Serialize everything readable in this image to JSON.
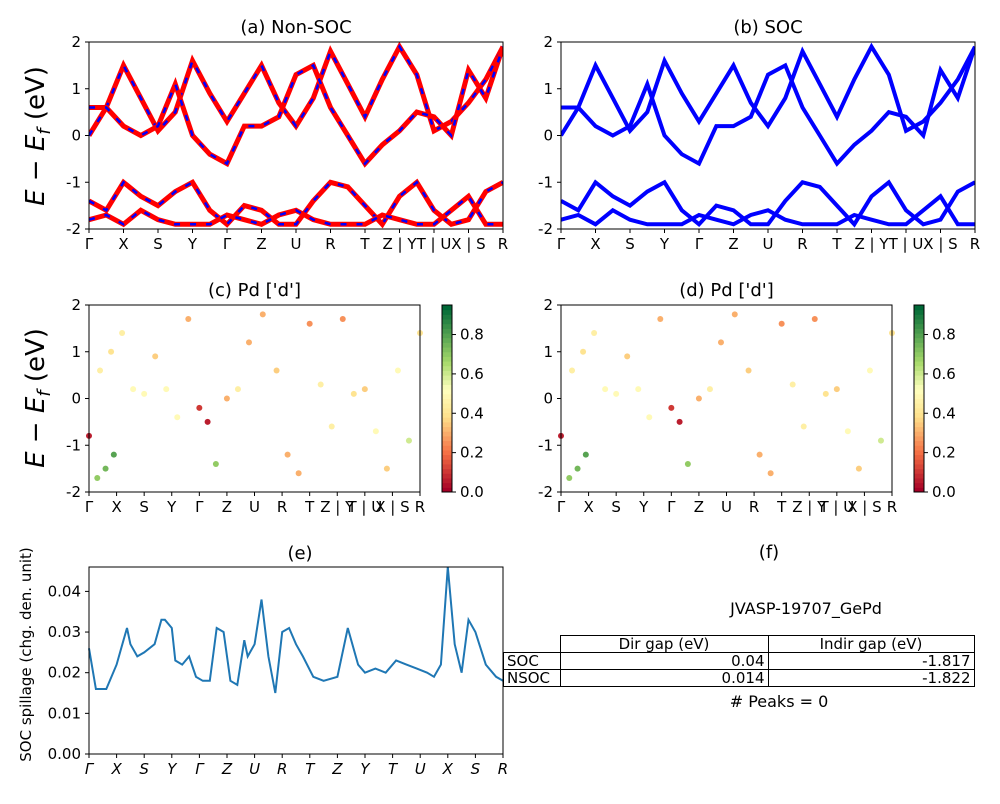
{
  "band_ticks": [
    "Γ",
    "X",
    "S",
    "Y",
    "Γ",
    "Z",
    "U",
    "R",
    "T",
    "Z | Y",
    "T | U",
    "X | S",
    "R"
  ],
  "spillage_ticks": [
    "Γ",
    "X",
    "S",
    "Y",
    "Γ",
    "Z",
    "U",
    "R",
    "T",
    "Z",
    "Y",
    "T",
    "U",
    "X",
    "S",
    "R"
  ],
  "ylabel_energy": "E − E",
  "ylabel_energy_sub": "f",
  "ylabel_energy_unit": "(eV)",
  "colorbar_ticks": [
    "0.0",
    "0.2",
    "0.4",
    "0.6",
    "0.8"
  ],
  "colors": {
    "nonsoc": "#ff0000",
    "nonsoc_dash": "#0000ff",
    "soc": "#0000ff",
    "spillage": "#1f77b4"
  },
  "chart_data": [
    {
      "type": "line",
      "title": "(a) Non-SOC",
      "ylabel": "E − E_f (eV)",
      "ylim": [
        -2,
        2
      ],
      "yticks": [
        -2,
        -1,
        0,
        1,
        2
      ],
      "x": [
        0,
        0.5,
        1,
        1.5,
        2,
        2.5,
        3,
        3.5,
        4,
        4.5,
        5,
        5.5,
        6,
        6.5,
        7,
        7.5,
        8,
        8.5,
        9,
        9.5,
        10,
        10.5,
        11,
        11.5,
        12
      ],
      "series": [
        {
          "values": [
            0.0,
            0.6,
            1.5,
            0.8,
            0.1,
            0.5,
            1.6,
            0.9,
            0.3,
            0.9,
            1.5,
            0.7,
            0.2,
            0.8,
            1.8,
            1.1,
            0.4,
            1.2,
            1.9,
            1.3,
            0.1,
            0.3,
            0.7,
            1.2,
            1.9
          ]
        },
        {
          "values": [
            0.6,
            0.6,
            0.2,
            0.0,
            0.2,
            1.1,
            0.0,
            -0.4,
            -0.6,
            0.2,
            0.2,
            0.4,
            1.3,
            1.5,
            0.6,
            0.0,
            -0.6,
            -0.2,
            0.1,
            0.5,
            0.4,
            0.0,
            1.4,
            0.8,
            1.9
          ]
        },
        {
          "values": [
            -1.4,
            -1.6,
            -1.0,
            -1.3,
            -1.5,
            -1.2,
            -1.0,
            -1.6,
            -1.9,
            -1.5,
            -1.6,
            -1.9,
            -1.9,
            -1.4,
            -1.0,
            -1.1,
            -1.5,
            -1.9,
            -1.3,
            -1.0,
            -1.6,
            -1.9,
            -1.8,
            -1.2,
            -1.0
          ]
        },
        {
          "values": [
            -1.8,
            -1.7,
            -1.9,
            -1.6,
            -1.8,
            -1.9,
            -1.9,
            -1.9,
            -1.7,
            -1.8,
            -1.9,
            -1.7,
            -1.6,
            -1.8,
            -1.9,
            -1.9,
            -1.9,
            -1.7,
            -1.8,
            -1.9,
            -1.9,
            -1.6,
            -1.3,
            -1.9,
            -1.9
          ]
        }
      ]
    },
    {
      "type": "line",
      "title": "(b) SOC",
      "ylim": [
        -2,
        2
      ],
      "yticks": [
        -2,
        -1,
        0,
        1,
        2
      ],
      "x": [
        0,
        0.5,
        1,
        1.5,
        2,
        2.5,
        3,
        3.5,
        4,
        4.5,
        5,
        5.5,
        6,
        6.5,
        7,
        7.5,
        8,
        8.5,
        9,
        9.5,
        10,
        10.5,
        11,
        11.5,
        12
      ],
      "series": [
        {
          "values": [
            0.0,
            0.6,
            1.5,
            0.8,
            0.1,
            0.5,
            1.6,
            0.9,
            0.3,
            0.9,
            1.5,
            0.7,
            0.2,
            0.8,
            1.8,
            1.1,
            0.4,
            1.2,
            1.9,
            1.3,
            0.1,
            0.3,
            0.7,
            1.2,
            1.9
          ]
        },
        {
          "values": [
            0.6,
            0.6,
            0.2,
            0.0,
            0.2,
            1.1,
            0.0,
            -0.4,
            -0.6,
            0.2,
            0.2,
            0.4,
            1.3,
            1.5,
            0.6,
            0.0,
            -0.6,
            -0.2,
            0.1,
            0.5,
            0.4,
            0.0,
            1.4,
            0.8,
            1.9
          ]
        },
        {
          "values": [
            -1.4,
            -1.6,
            -1.0,
            -1.3,
            -1.5,
            -1.2,
            -1.0,
            -1.6,
            -1.9,
            -1.5,
            -1.6,
            -1.9,
            -1.9,
            -1.4,
            -1.0,
            -1.1,
            -1.5,
            -1.9,
            -1.3,
            -1.0,
            -1.6,
            -1.9,
            -1.8,
            -1.2,
            -1.0
          ]
        },
        {
          "values": [
            -1.8,
            -1.7,
            -1.9,
            -1.6,
            -1.8,
            -1.9,
            -1.9,
            -1.9,
            -1.7,
            -1.8,
            -1.9,
            -1.7,
            -1.6,
            -1.8,
            -1.9,
            -1.9,
            -1.9,
            -1.7,
            -1.8,
            -1.9,
            -1.9,
            -1.6,
            -1.3,
            -1.9,
            -1.9
          ]
        }
      ]
    },
    {
      "type": "scatter",
      "title": "(c)  Pd ['d']",
      "ylim": [
        -2,
        2
      ],
      "yticks": [
        -2,
        -1,
        0,
        1,
        2
      ],
      "colorbar_range": [
        0.0,
        0.95
      ],
      "points": [
        {
          "x": 0.0,
          "y": -0.8,
          "c": 0.05
        },
        {
          "x": 0.3,
          "y": -1.7,
          "c": 0.7
        },
        {
          "x": 0.6,
          "y": -1.5,
          "c": 0.75
        },
        {
          "x": 0.9,
          "y": -1.2,
          "c": 0.8
        },
        {
          "x": 0.4,
          "y": 0.6,
          "c": 0.45
        },
        {
          "x": 0.8,
          "y": 1.0,
          "c": 0.4
        },
        {
          "x": 1.2,
          "y": 1.4,
          "c": 0.45
        },
        {
          "x": 1.6,
          "y": 0.2,
          "c": 0.5
        },
        {
          "x": 2.0,
          "y": 0.1,
          "c": 0.5
        },
        {
          "x": 2.4,
          "y": 0.9,
          "c": 0.35
        },
        {
          "x": 2.8,
          "y": 0.2,
          "c": 0.5
        },
        {
          "x": 3.2,
          "y": -0.4,
          "c": 0.5
        },
        {
          "x": 3.6,
          "y": 1.7,
          "c": 0.3
        },
        {
          "x": 4.0,
          "y": -0.2,
          "c": 0.1
        },
        {
          "x": 4.3,
          "y": -0.5,
          "c": 0.05
        },
        {
          "x": 4.6,
          "y": -1.4,
          "c": 0.7
        },
        {
          "x": 5.0,
          "y": 0.0,
          "c": 0.3
        },
        {
          "x": 5.4,
          "y": 0.2,
          "c": 0.45
        },
        {
          "x": 5.8,
          "y": 1.2,
          "c": 0.3
        },
        {
          "x": 6.3,
          "y": 1.8,
          "c": 0.3
        },
        {
          "x": 6.8,
          "y": 0.6,
          "c": 0.35
        },
        {
          "x": 7.2,
          "y": -1.2,
          "c": 0.3
        },
        {
          "x": 7.6,
          "y": -1.6,
          "c": 0.3
        },
        {
          "x": 8.0,
          "y": 1.6,
          "c": 0.25
        },
        {
          "x": 8.4,
          "y": 0.3,
          "c": 0.45
        },
        {
          "x": 8.8,
          "y": -0.6,
          "c": 0.45
        },
        {
          "x": 9.2,
          "y": 1.7,
          "c": 0.25
        },
        {
          "x": 9.6,
          "y": 0.1,
          "c": 0.4
        },
        {
          "x": 10.0,
          "y": 0.2,
          "c": 0.35
        },
        {
          "x": 10.4,
          "y": -0.7,
          "c": 0.5
        },
        {
          "x": 10.8,
          "y": -1.5,
          "c": 0.35
        },
        {
          "x": 11.2,
          "y": 0.6,
          "c": 0.5
        },
        {
          "x": 11.6,
          "y": -0.9,
          "c": 0.6
        },
        {
          "x": 12.0,
          "y": 1.4,
          "c": 0.4
        }
      ]
    },
    {
      "type": "scatter",
      "title": "(d) Pd ['d']",
      "ylim": [
        -2,
        2
      ],
      "yticks": [
        -2,
        -1,
        0,
        1,
        2
      ],
      "colorbar_range": [
        0.0,
        0.95
      ],
      "points": [
        {
          "x": 0.0,
          "y": -0.8,
          "c": 0.05
        },
        {
          "x": 0.3,
          "y": -1.7,
          "c": 0.7
        },
        {
          "x": 0.6,
          "y": -1.5,
          "c": 0.75
        },
        {
          "x": 0.9,
          "y": -1.2,
          "c": 0.8
        },
        {
          "x": 0.4,
          "y": 0.6,
          "c": 0.45
        },
        {
          "x": 0.8,
          "y": 1.0,
          "c": 0.4
        },
        {
          "x": 1.2,
          "y": 1.4,
          "c": 0.45
        },
        {
          "x": 1.6,
          "y": 0.2,
          "c": 0.5
        },
        {
          "x": 2.0,
          "y": 0.1,
          "c": 0.5
        },
        {
          "x": 2.4,
          "y": 0.9,
          "c": 0.35
        },
        {
          "x": 2.8,
          "y": 0.2,
          "c": 0.5
        },
        {
          "x": 3.2,
          "y": -0.4,
          "c": 0.5
        },
        {
          "x": 3.6,
          "y": 1.7,
          "c": 0.3
        },
        {
          "x": 4.0,
          "y": -0.2,
          "c": 0.1
        },
        {
          "x": 4.3,
          "y": -0.5,
          "c": 0.05
        },
        {
          "x": 4.6,
          "y": -1.4,
          "c": 0.7
        },
        {
          "x": 5.0,
          "y": 0.0,
          "c": 0.3
        },
        {
          "x": 5.4,
          "y": 0.2,
          "c": 0.45
        },
        {
          "x": 5.8,
          "y": 1.2,
          "c": 0.3
        },
        {
          "x": 6.3,
          "y": 1.8,
          "c": 0.3
        },
        {
          "x": 6.8,
          "y": 0.6,
          "c": 0.35
        },
        {
          "x": 7.2,
          "y": -1.2,
          "c": 0.3
        },
        {
          "x": 7.6,
          "y": -1.6,
          "c": 0.3
        },
        {
          "x": 8.0,
          "y": 1.6,
          "c": 0.25
        },
        {
          "x": 8.4,
          "y": 0.3,
          "c": 0.45
        },
        {
          "x": 8.8,
          "y": -0.6,
          "c": 0.45
        },
        {
          "x": 9.2,
          "y": 1.7,
          "c": 0.25
        },
        {
          "x": 9.6,
          "y": 0.1,
          "c": 0.4
        },
        {
          "x": 10.0,
          "y": 0.2,
          "c": 0.35
        },
        {
          "x": 10.4,
          "y": -0.7,
          "c": 0.5
        },
        {
          "x": 10.8,
          "y": -1.5,
          "c": 0.35
        },
        {
          "x": 11.2,
          "y": 0.6,
          "c": 0.5
        },
        {
          "x": 11.6,
          "y": -0.9,
          "c": 0.6
        },
        {
          "x": 12.0,
          "y": 1.4,
          "c": 0.4
        }
      ]
    },
    {
      "type": "line",
      "title": "(e)",
      "ylabel": "SOC spillage (chg. den. unit)",
      "ylim": [
        0,
        0.046
      ],
      "yticks": [
        "0.00",
        "0.01",
        "0.02",
        "0.03",
        "0.04"
      ],
      "x": [
        0.0,
        0.2,
        0.5,
        0.8,
        1.0,
        1.1,
        1.2,
        1.4,
        1.6,
        1.9,
        2.1,
        2.2,
        2.4,
        2.5,
        2.7,
        2.9,
        3.1,
        3.3,
        3.5,
        3.7,
        3.9,
        4.1,
        4.3,
        4.5,
        4.6,
        4.8,
        5.0,
        5.2,
        5.4,
        5.6,
        5.8,
        6.0,
        6.2,
        6.5,
        6.8,
        7.2,
        7.5,
        7.8,
        8.0,
        8.3,
        8.6,
        8.9,
        9.2,
        9.5,
        9.8,
        10.0,
        10.2,
        10.4,
        10.6,
        10.8,
        11.0,
        11.2,
        11.5,
        11.8,
        12.0
      ],
      "values": [
        0.026,
        0.016,
        0.016,
        0.022,
        0.028,
        0.031,
        0.027,
        0.024,
        0.025,
        0.027,
        0.033,
        0.033,
        0.031,
        0.023,
        0.022,
        0.024,
        0.019,
        0.018,
        0.018,
        0.031,
        0.03,
        0.018,
        0.017,
        0.028,
        0.024,
        0.027,
        0.038,
        0.024,
        0.015,
        0.03,
        0.031,
        0.027,
        0.024,
        0.019,
        0.018,
        0.019,
        0.031,
        0.022,
        0.02,
        0.021,
        0.02,
        0.023,
        0.022,
        0.021,
        0.02,
        0.019,
        0.022,
        0.046,
        0.027,
        0.02,
        0.033,
        0.03,
        0.022,
        0.019,
        0.018
      ]
    },
    {
      "type": "table",
      "title": "(f)",
      "caption": "JVASP-19707_GePd",
      "columns": [
        "Dir gap (eV)",
        "Indir gap (eV)"
      ],
      "rows": [
        {
          "label": "SOC",
          "values": [
            "0.04",
            "-1.817"
          ]
        },
        {
          "label": "NSOC",
          "values": [
            "0.014",
            "-1.822"
          ]
        }
      ],
      "footer": "# Peaks = 0"
    }
  ]
}
